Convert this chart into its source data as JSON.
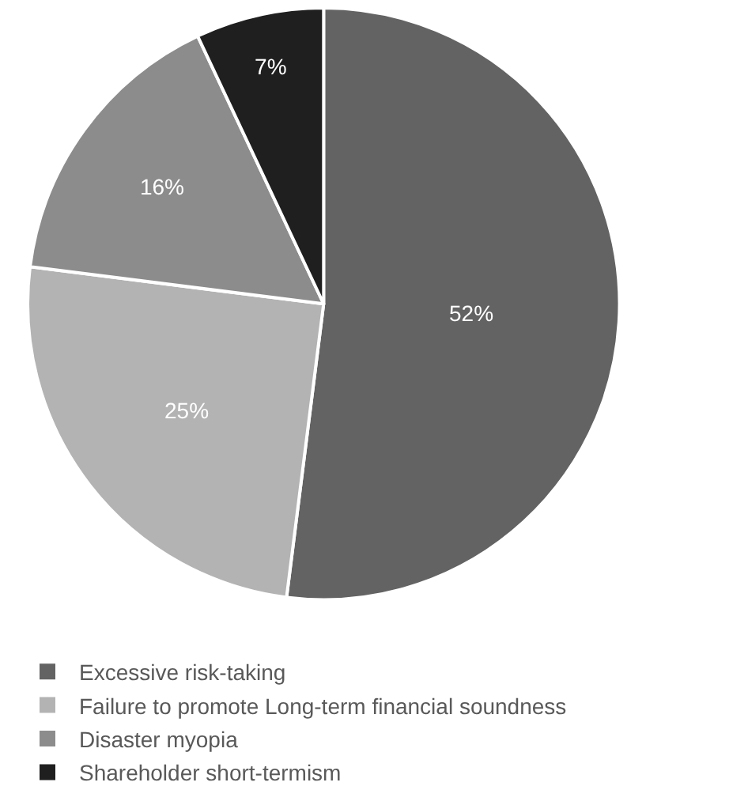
{
  "chart_data": {
    "type": "pie",
    "categories": [
      "Excessive risk-taking",
      "Failure to promote Long-term financial soundness",
      "Disaster myopia",
      "Shareholder short-termism"
    ],
    "values": [
      52,
      25,
      16,
      7
    ],
    "value_labels": [
      "52%",
      "25%",
      "16%",
      "7%"
    ],
    "colors": [
      "#636363",
      "#b3b3b3",
      "#8c8c8c",
      "#1f1f1f"
    ],
    "legend": "bottom"
  }
}
